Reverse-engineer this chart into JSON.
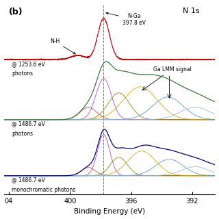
{
  "title_label": "N 1s",
  "panel_label": "(b)",
  "xlabel": "Binding Energy (eV)",
  "dashed_line_x": 397.8,
  "spectrum1_label1": "@ 1253.6 eV",
  "spectrum1_label2": "photons",
  "spectrum2_label1": "@ 1486.7 eV",
  "spectrum2_label2": "photons",
  "spectrum3_label1": "@ 1486.7 eV",
  "spectrum3_label2": "monochromatic photons",
  "spectrum1_color": "#cc0000",
  "spectrum2_color": "#3a7a3a",
  "spectrum3_color": "#00008b",
  "comp_colors": [
    "#cc44cc",
    "#888800",
    "#ccaa00",
    "#5577cc",
    "#88aadd"
  ],
  "offsets": [
    0.72,
    0.4,
    0.1
  ],
  "scales": [
    0.22,
    0.22,
    0.22
  ]
}
